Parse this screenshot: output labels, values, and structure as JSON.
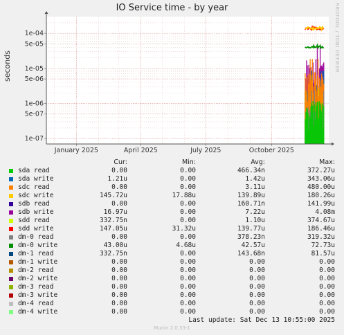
{
  "title": "IO Service time - by year",
  "side_text": "RRDTOOL / TOBI OETIKER",
  "footer": "Munin 2.0.33-1",
  "last_update": "Last update:  Sat Dec 13 10:55:00 2025",
  "chart_data": {
    "type": "line",
    "title": "IO Service time - by year",
    "ylabel": "seconds",
    "yscale": "log",
    "ylim": [
      7e-08,
      0.0003
    ],
    "y_ticks": [
      "1e-07",
      "5e-07",
      "1e-06",
      "5e-06",
      "1e-05",
      "5e-05",
      "1e-04"
    ],
    "y_tick_values": [
      1e-07,
      5e-07,
      1e-06,
      5e-06,
      1e-05,
      5e-05,
      0.0001
    ],
    "x_ticks": [
      "January 2025",
      "April 2025",
      "July 2025",
      "October 2025"
    ],
    "x_tick_dates": [
      "2025-01-01",
      "2025-04-01",
      "2025-07-01",
      "2025-10-01"
    ],
    "xlim": [
      "2024-11-20",
      "2025-12-20"
    ],
    "data_start": "2025-11-17",
    "grid": true,
    "legend_columns": [
      "Cur:",
      "Min:",
      "Avg:",
      "Max:"
    ],
    "series": [
      {
        "name": "sda read",
        "color": "#00cc00",
        "cur": "0.00",
        "min": "0.00",
        "avg": "466.34n",
        "max": "372.27u"
      },
      {
        "name": "sda write",
        "color": "#0066b3",
        "cur": "1.21u",
        "min": "0.00",
        "avg": "1.42u",
        "max": "343.06u"
      },
      {
        "name": "sdc read",
        "color": "#ff8000",
        "cur": "0.00",
        "min": "0.00",
        "avg": "3.11u",
        "max": "480.00u"
      },
      {
        "name": "sdc write",
        "color": "#ffcc00",
        "cur": "145.72u",
        "min": "17.88u",
        "avg": "139.89u",
        "max": "180.26u"
      },
      {
        "name": "sdb read",
        "color": "#330099",
        "cur": "0.00",
        "min": "0.00",
        "avg": "160.71n",
        "max": "141.99u"
      },
      {
        "name": "sdb write",
        "color": "#990099",
        "cur": "16.97u",
        "min": "0.00",
        "avg": "7.22u",
        "max": "4.08m"
      },
      {
        "name": "sdd read",
        "color": "#ccff00",
        "cur": "332.75n",
        "min": "0.00",
        "avg": "1.10u",
        "max": "374.67u"
      },
      {
        "name": "sdd write",
        "color": "#ff0000",
        "cur": "147.05u",
        "min": "31.32u",
        "avg": "139.77u",
        "max": "186.46u"
      },
      {
        "name": "dm-0 read",
        "color": "#808080",
        "cur": "0.00",
        "min": "0.00",
        "avg": "378.23n",
        "max": "319.32u"
      },
      {
        "name": "dm-0 write",
        "color": "#008f00",
        "cur": "43.00u",
        "min": "4.68u",
        "avg": "42.57u",
        "max": "72.73u"
      },
      {
        "name": "dm-1 read",
        "color": "#00487d",
        "cur": "332.75n",
        "min": "0.00",
        "avg": "143.68n",
        "max": "81.57u"
      },
      {
        "name": "dm-1 write",
        "color": "#b35a00",
        "cur": "0.00",
        "min": "0.00",
        "avg": "0.00",
        "max": "0.00"
      },
      {
        "name": "dm-2 read",
        "color": "#b38f00",
        "cur": "0.00",
        "min": "0.00",
        "avg": "0.00",
        "max": "0.00"
      },
      {
        "name": "dm-2 write",
        "color": "#6b006b",
        "cur": "0.00",
        "min": "0.00",
        "avg": "0.00",
        "max": "0.00"
      },
      {
        "name": "dm-3 read",
        "color": "#8fb300",
        "cur": "0.00",
        "min": "0.00",
        "avg": "0.00",
        "max": "0.00"
      },
      {
        "name": "dm-3 write",
        "color": "#b30000",
        "cur": "0.00",
        "min": "0.00",
        "avg": "0.00",
        "max": "0.00"
      },
      {
        "name": "dm-4 read",
        "color": "#bebebe",
        "cur": "0.00",
        "min": "0.00",
        "avg": "0.00",
        "max": "0.00"
      },
      {
        "name": "dm-4 write",
        "color": "#80ff80",
        "cur": "0.00",
        "min": "0.00",
        "avg": "0.00",
        "max": "0.00"
      }
    ]
  }
}
